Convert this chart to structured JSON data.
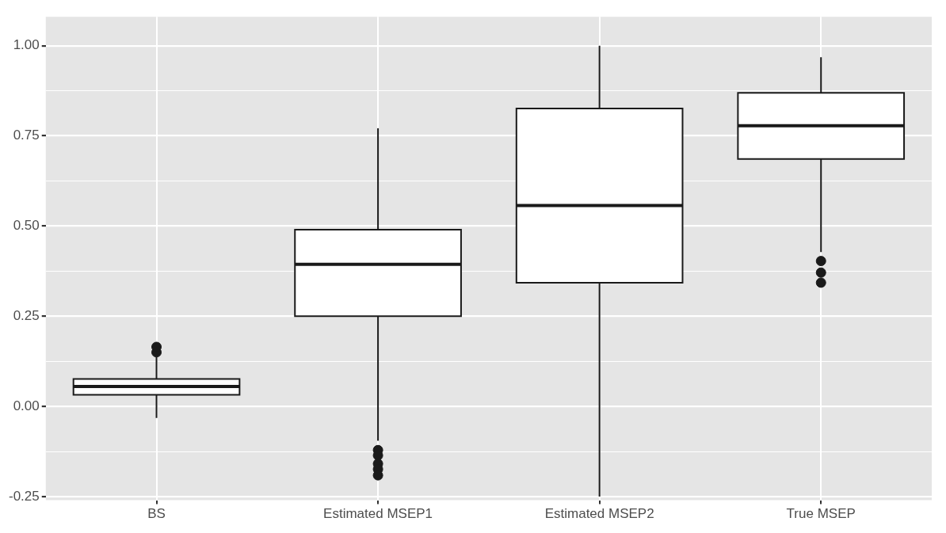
{
  "chart_data": {
    "type": "box",
    "categories": [
      "BS",
      "Estimated MSEP1",
      "Estimated MSEP2",
      "True MSEP"
    ],
    "boxes": [
      {
        "low": -0.032,
        "q1": 0.032,
        "median": 0.055,
        "q3": 0.076,
        "high": 0.138,
        "outliers": [
          0.15,
          0.165
        ]
      },
      {
        "low": -0.095,
        "q1": 0.25,
        "median": 0.394,
        "q3": 0.49,
        "high": 0.771,
        "outliers": [
          -0.121,
          -0.136,
          -0.159,
          -0.174,
          -0.191
        ]
      },
      {
        "low": -0.25,
        "q1": 0.343,
        "median": 0.557,
        "q3": 0.826,
        "high": 1.0
      },
      {
        "low": 0.428,
        "q1": 0.686,
        "median": 0.778,
        "q3": 0.869,
        "high": 0.968,
        "outliers": [
          0.343,
          0.371,
          0.403
        ]
      }
    ],
    "ylim": [
      -0.26,
      1.08
    ],
    "yticks": [
      {
        "value": -0.25,
        "label": "-0.25"
      },
      {
        "value": -0.125,
        "label": null
      },
      {
        "value": 0,
        "label": "0.00"
      },
      {
        "value": 0.125,
        "label": null
      },
      {
        "value": 0.25,
        "label": "0.25"
      },
      {
        "value": 0.375,
        "label": null
      },
      {
        "value": 0.5,
        "label": "0.50"
      },
      {
        "value": 0.625,
        "label": null
      },
      {
        "value": 0.75,
        "label": "0.75"
      },
      {
        "value": 0.875,
        "label": null
      },
      {
        "value": 1,
        "label": "1.00"
      }
    ],
    "grid": true
  }
}
